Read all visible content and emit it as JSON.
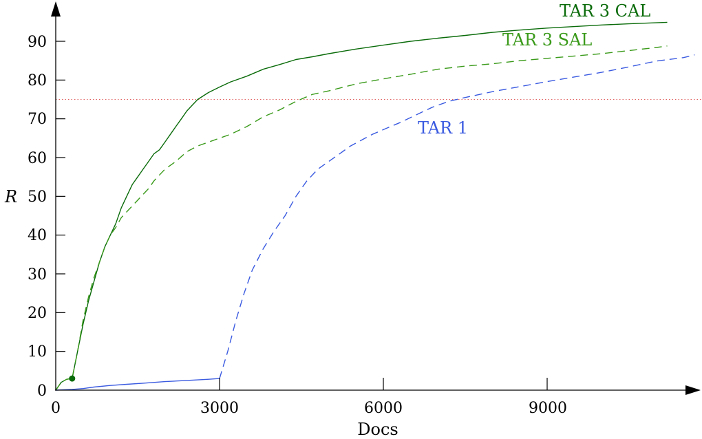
{
  "chart_data": {
    "type": "line",
    "title": "",
    "xlabel": "Docs",
    "ylabel": "R",
    "xlim": [
      0,
      11700
    ],
    "ylim": [
      0,
      98
    ],
    "x_ticks": [
      0,
      3000,
      6000,
      9000
    ],
    "y_ticks": [
      0,
      10,
      20,
      30,
      40,
      50,
      60,
      70,
      80,
      90
    ],
    "grid": false,
    "legend": "none",
    "reference_line": {
      "y": 75,
      "style": "dotted",
      "color": "#e06060"
    },
    "series": [
      {
        "name": "TAR 3 CAL",
        "color": "#0a6b0a",
        "style": "solid",
        "points": [
          [
            0,
            0
          ],
          [
            100,
            2
          ],
          [
            200,
            2.8
          ],
          [
            300,
            3
          ],
          [
            400,
            10
          ],
          [
            500,
            17
          ],
          [
            600,
            23
          ],
          [
            700,
            28
          ],
          [
            800,
            33
          ],
          [
            900,
            37
          ],
          [
            1000,
            40
          ],
          [
            1100,
            43
          ],
          [
            1200,
            47
          ],
          [
            1300,
            50
          ],
          [
            1400,
            53
          ],
          [
            1500,
            55
          ],
          [
            1600,
            57
          ],
          [
            1700,
            59
          ],
          [
            1800,
            61
          ],
          [
            1900,
            62
          ],
          [
            2000,
            64
          ],
          [
            2100,
            66
          ],
          [
            2200,
            68
          ],
          [
            2300,
            70
          ],
          [
            2400,
            72
          ],
          [
            2500,
            73.5
          ],
          [
            2600,
            75
          ],
          [
            2800,
            76.8
          ],
          [
            3000,
            78.2
          ],
          [
            3200,
            79.5
          ],
          [
            3500,
            81
          ],
          [
            3800,
            82.8
          ],
          [
            4100,
            84
          ],
          [
            4400,
            85.3
          ],
          [
            4700,
            86
          ],
          [
            5000,
            86.8
          ],
          [
            5500,
            88
          ],
          [
            6000,
            89
          ],
          [
            6500,
            90
          ],
          [
            7000,
            90.8
          ],
          [
            7500,
            91.5
          ],
          [
            8000,
            92.3
          ],
          [
            8500,
            92.9
          ],
          [
            9000,
            93.4
          ],
          [
            9500,
            93.8
          ],
          [
            10000,
            94.2
          ],
          [
            10500,
            94.5
          ],
          [
            11200,
            94.9
          ]
        ]
      },
      {
        "name": "TAR 3 SAL",
        "color": "#3a9a1a",
        "style": "dashed",
        "points": [
          [
            0,
            0
          ],
          [
            100,
            2
          ],
          [
            200,
            2.8
          ],
          [
            300,
            3
          ],
          [
            400,
            10
          ],
          [
            500,
            18
          ],
          [
            600,
            24
          ],
          [
            700,
            29
          ],
          [
            800,
            33
          ],
          [
            900,
            37
          ],
          [
            1000,
            40
          ],
          [
            1100,
            42
          ],
          [
            1200,
            44.5
          ],
          [
            1300,
            46
          ],
          [
            1400,
            47.5
          ],
          [
            1500,
            49
          ],
          [
            1600,
            50.5
          ],
          [
            1700,
            52
          ],
          [
            1800,
            54
          ],
          [
            1900,
            55.5
          ],
          [
            2000,
            57
          ],
          [
            2200,
            59
          ],
          [
            2400,
            61.5
          ],
          [
            2600,
            63
          ],
          [
            2800,
            64
          ],
          [
            3000,
            65
          ],
          [
            3200,
            66
          ],
          [
            3500,
            68
          ],
          [
            3800,
            70.5
          ],
          [
            4100,
            72.3
          ],
          [
            4400,
            74.5
          ],
          [
            4700,
            76.3
          ],
          [
            5000,
            77.2
          ],
          [
            5500,
            79
          ],
          [
            6000,
            80.3
          ],
          [
            6500,
            81.5
          ],
          [
            7000,
            82.8
          ],
          [
            7500,
            83.6
          ],
          [
            8000,
            84.2
          ],
          [
            8500,
            85
          ],
          [
            9000,
            85.6
          ],
          [
            9500,
            86.2
          ],
          [
            10000,
            86.8
          ],
          [
            10500,
            87.6
          ],
          [
            11000,
            88.4
          ],
          [
            11200,
            88.8
          ]
        ]
      },
      {
        "name": "TAR 1",
        "color": "#3a5ae0",
        "style": "mixed",
        "solid_until": 3000,
        "points": [
          [
            0,
            0
          ],
          [
            300,
            0.2
          ],
          [
            500,
            0.4
          ],
          [
            700,
            0.8
          ],
          [
            1000,
            1.2
          ],
          [
            1300,
            1.5
          ],
          [
            1600,
            1.8
          ],
          [
            2000,
            2.2
          ],
          [
            2400,
            2.5
          ],
          [
            2800,
            2.8
          ],
          [
            3000,
            3
          ],
          [
            3150,
            10
          ],
          [
            3300,
            18
          ],
          [
            3450,
            25
          ],
          [
            3600,
            31
          ],
          [
            3800,
            36.5
          ],
          [
            4000,
            41
          ],
          [
            4200,
            45
          ],
          [
            4400,
            50
          ],
          [
            4600,
            54
          ],
          [
            4800,
            57
          ],
          [
            5000,
            59
          ],
          [
            5200,
            61
          ],
          [
            5400,
            63
          ],
          [
            5600,
            64.5
          ],
          [
            5800,
            66
          ],
          [
            6000,
            67.2
          ],
          [
            6300,
            69
          ],
          [
            6600,
            71
          ],
          [
            6900,
            73
          ],
          [
            7200,
            74.5
          ],
          [
            7500,
            75.5
          ],
          [
            8000,
            77
          ],
          [
            8500,
            78.3
          ],
          [
            9000,
            79.6
          ],
          [
            9500,
            80.8
          ],
          [
            10000,
            82
          ],
          [
            10500,
            83.4
          ],
          [
            11000,
            84.9
          ],
          [
            11500,
            85.8
          ],
          [
            11700,
            86.5
          ]
        ]
      }
    ],
    "marker": {
      "x": 300,
      "y": 3,
      "color": "#0a6b0a"
    }
  },
  "labels": {
    "xlabel": "Docs",
    "ylabel": "R",
    "x_ticks": [
      "0",
      "3000",
      "6000",
      "9000"
    ],
    "y_ticks": [
      "0",
      "10",
      "20",
      "30",
      "40",
      "50",
      "60",
      "70",
      "80",
      "90"
    ],
    "series_tar3cal": "TAR 3 CAL",
    "series_tar3sal": "TAR 3 SAL",
    "series_tar1": "TAR 1"
  }
}
